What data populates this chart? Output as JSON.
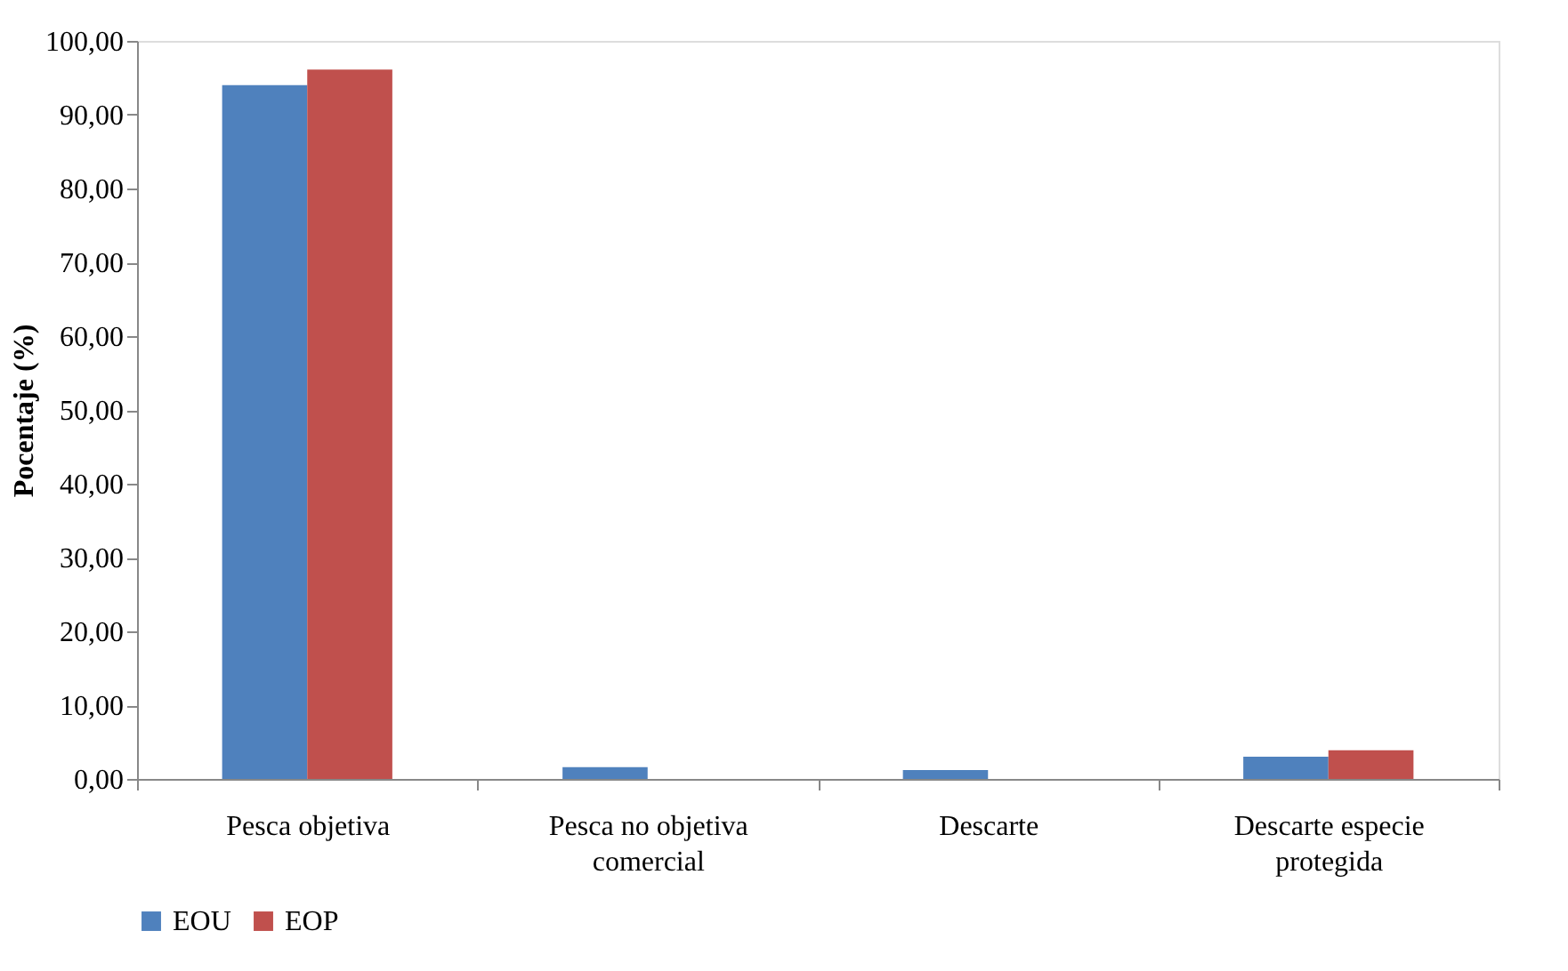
{
  "chart_data": {
    "type": "bar",
    "ylabel": "Pocentaje (%)",
    "categories": [
      "Pesca objetiva",
      "Pesca no objetiva comercial",
      "Descarte",
      "Descarte especie protegida"
    ],
    "series": [
      {
        "name": "EOU",
        "color": "#4f81bd",
        "values": [
          94.0,
          1.6,
          1.2,
          3.0
        ]
      },
      {
        "name": "EOP",
        "color": "#c0504d",
        "values": [
          96.1,
          0,
          0,
          3.9
        ]
      }
    ],
    "ylim": [
      0,
      100
    ],
    "yticks": [
      {
        "value": 0,
        "label": "0,00"
      },
      {
        "value": 10,
        "label": "10,00"
      },
      {
        "value": 20,
        "label": "20,00"
      },
      {
        "value": 30,
        "label": "30,00"
      },
      {
        "value": 40,
        "label": "40,00"
      },
      {
        "value": 50,
        "label": "50,00"
      },
      {
        "value": 60,
        "label": "60,00"
      },
      {
        "value": 70,
        "label": "70,00"
      },
      {
        "value": 80,
        "label": "80,00"
      },
      {
        "value": 90,
        "label": "90,00"
      },
      {
        "value": 100,
        "label": "100,00"
      }
    ],
    "grid": false,
    "legend": "bottom"
  }
}
